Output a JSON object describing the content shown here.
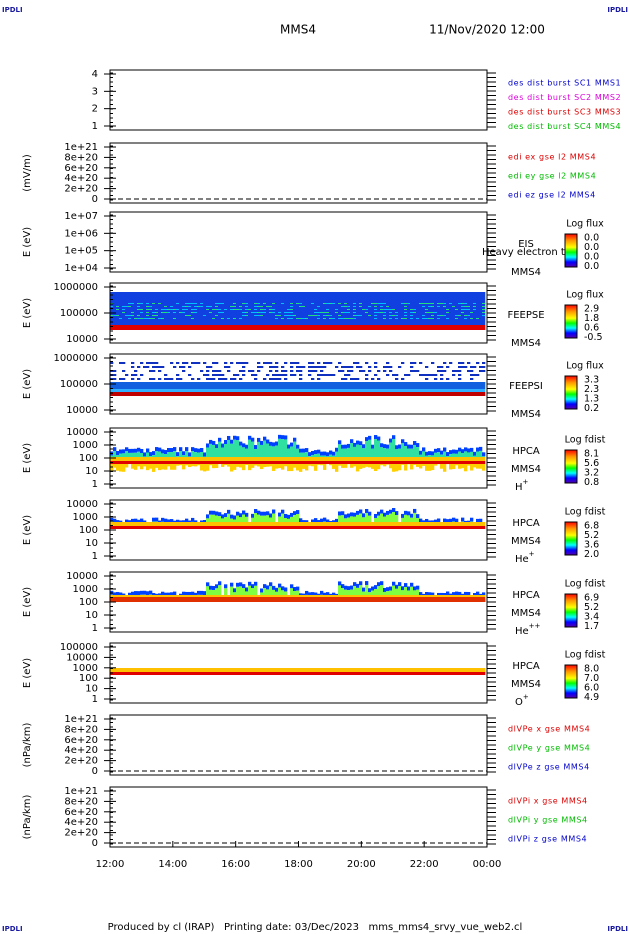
{
  "corner_label": "IPDLI",
  "header": {
    "spacecraft": "MMS4",
    "time": "11/Nov/2020 12:00"
  },
  "panels": [
    {
      "yticks": [
        "4",
        "3",
        "2",
        "1"
      ],
      "legend": [
        {
          "text": "des dist burst SC1 MMS1",
          "color": "#0000cc"
        },
        {
          "text": "des dist burst SC2 MMS2",
          "color": "#dd00dd"
        },
        {
          "text": "des dist burst SC3 MMS3",
          "color": "#dd0000"
        },
        {
          "text": "des dist burst SC4 MMS4",
          "color": "#00bb00"
        }
      ]
    },
    {
      "ylabel": "(mV/m)",
      "yticks": [
        "1e+21",
        "8e+20",
        "6e+20",
        "4e+20",
        "2e+20",
        "0"
      ],
      "legend": [
        {
          "text": "edi ex gse l2 MMS4",
          "color": "#dd0000"
        },
        {
          "text": "edi ey gse l2 MMS4",
          "color": "#00bb00"
        },
        {
          "text": "edi ez gse l2 MMS4",
          "color": "#0000cc"
        }
      ]
    },
    {
      "ylabel": "E (eV)",
      "yticks": [
        "1e+07",
        "1e+06",
        "1e+05",
        "1e+04"
      ],
      "instrument": "EIS",
      "overlay": "Heavy electron to",
      "sc": "MMS4",
      "colorbar": {
        "title": "Log flux",
        "ticks": [
          "0.0",
          "0.0",
          "0.0",
          "0.0"
        ]
      }
    },
    {
      "ylabel": "E (eV)",
      "yticks": [
        "1000000",
        "100000",
        "10000"
      ],
      "instrument": "FEEPSE",
      "sc": "MMS4",
      "colorbar": {
        "title": "Log flux",
        "ticks": [
          "2.9",
          "1.8",
          "0.6",
          "-0.5"
        ]
      }
    },
    {
      "ylabel": "E (eV)",
      "yticks": [
        "1000000",
        "100000",
        "10000"
      ],
      "instrument": "FEEPSI",
      "sc": "MMS4",
      "colorbar": {
        "title": "Log flux",
        "ticks": [
          "3.3",
          "2.3",
          "1.3",
          "0.2"
        ]
      }
    },
    {
      "ylabel": "E (eV)",
      "yticks": [
        "10000",
        "1000",
        "100",
        "10",
        "1"
      ],
      "instrument": "HPCA",
      "sc": "MMS4",
      "species": {
        "base": "H",
        "sup": "+"
      },
      "colorbar": {
        "title": "Log fdist",
        "ticks": [
          "8.1",
          "5.6",
          "3.2",
          "0.8"
        ]
      }
    },
    {
      "ylabel": "E (eV)",
      "yticks": [
        "10000",
        "1000",
        "100",
        "10",
        "1"
      ],
      "instrument": "HPCA",
      "sc": "MMS4",
      "species": {
        "base": "He",
        "sup": "+"
      },
      "colorbar": {
        "title": "Log fdist",
        "ticks": [
          "6.8",
          "5.2",
          "3.6",
          "2.0"
        ]
      }
    },
    {
      "ylabel": "E (eV)",
      "yticks": [
        "10000",
        "1000",
        "100",
        "10",
        "1"
      ],
      "instrument": "HPCA",
      "sc": "MMS4",
      "species": {
        "base": "He",
        "sup": "++"
      },
      "colorbar": {
        "title": "Log fdist",
        "ticks": [
          "6.9",
          "5.2",
          "3.4",
          "1.7"
        ]
      }
    },
    {
      "ylabel": "E (eV)",
      "yticks": [
        "100000",
        "10000",
        "1000",
        "100",
        "10",
        "1"
      ],
      "instrument": "HPCA",
      "sc": "MMS4",
      "species": {
        "base": "O",
        "sup": "+"
      },
      "colorbar": {
        "title": "Log fdist",
        "ticks": [
          "8.0",
          "7.0",
          "6.0",
          "4.9"
        ]
      }
    },
    {
      "ylabel": "(nPa/km)",
      "yticks": [
        "1e+21",
        "8e+20",
        "6e+20",
        "4e+20",
        "2e+20",
        "0"
      ],
      "legend": [
        {
          "text": "dlVPe x gse MMS4",
          "color": "#dd0000"
        },
        {
          "text": "dlVPe y gse MMS4",
          "color": "#00bb00"
        },
        {
          "text": "dlVPe z gse MMS4",
          "color": "#0000cc"
        }
      ]
    },
    {
      "ylabel": "(nPa/km)",
      "yticks": [
        "1e+21",
        "8e+20",
        "6e+20",
        "4e+20",
        "2e+20",
        "0"
      ],
      "legend": [
        {
          "text": "dlVPi x gse MMS4",
          "color": "#dd0000"
        },
        {
          "text": "dlVPi y gse MMS4",
          "color": "#00bb00"
        },
        {
          "text": "dlVPi z gse MMS4",
          "color": "#0000cc"
        }
      ]
    }
  ],
  "xticks": [
    "12:00",
    "14:00",
    "16:00",
    "18:00",
    "20:00",
    "22:00",
    "00:00"
  ],
  "footer": "Produced by cl (IRAP)   Printing date: 03/Dec/2023   mms_mms4_srvy_vue_web2.cl"
}
